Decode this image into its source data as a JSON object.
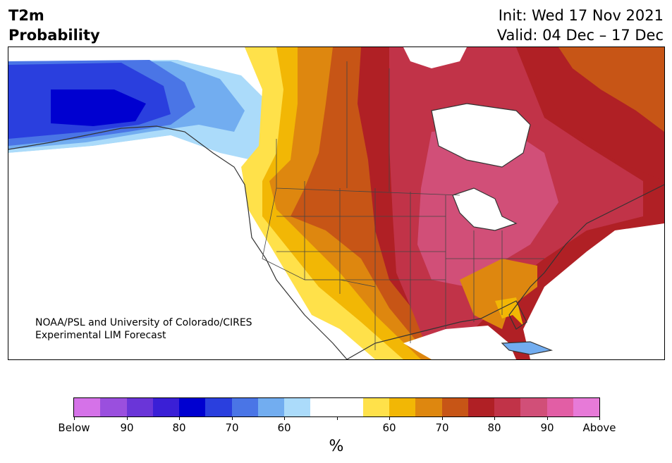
{
  "header": {
    "title_line1": "T2m",
    "title_line2": "Probability",
    "init": "Init: Wed 17 Nov 2021",
    "valid": "Valid: 04 Dec – 17 Dec"
  },
  "credit": {
    "line1": "NOAA/PSL and University of Colorado/CIRES",
    "line2": "Experimental LIM Forecast"
  },
  "colorbar": {
    "unit": "%",
    "colors": [
      "#d572e8",
      "#9a4fde",
      "#6a35d8",
      "#3a1fd6",
      "#0000d0",
      "#2a3fde",
      "#4a75e6",
      "#72adf0",
      "#abdbfa",
      "#ffffff",
      "#ffffff",
      "#ffe14a",
      "#f2b705",
      "#de870f",
      "#c75516",
      "#b02025",
      "#c13348",
      "#d14f78",
      "#e25ea5",
      "#e77ad8"
    ],
    "ticks": [
      {
        "label": "Below"
      },
      {
        "label": "90"
      },
      {
        "label": "80"
      },
      {
        "label": "70"
      },
      {
        "label": "60"
      },
      {
        "label": ""
      },
      {
        "label": "60"
      },
      {
        "label": "70"
      },
      {
        "label": "80"
      },
      {
        "label": "90"
      },
      {
        "label": "Above"
      }
    ]
  },
  "map_regions": [
    {
      "name": "alaska-below-90",
      "color": "#0000d0"
    },
    {
      "name": "alaska-below-80",
      "color": "#2a3fde"
    },
    {
      "name": "yukon-below-70",
      "color": "#4a75e6"
    },
    {
      "name": "bc-below-60",
      "color": "#abdbfa"
    },
    {
      "name": "west-above-60",
      "color": "#ffe14a"
    },
    {
      "name": "west-above-70",
      "color": "#de870f"
    },
    {
      "name": "plains-above-80",
      "color": "#b02025"
    },
    {
      "name": "east-above-85",
      "color": "#c13348"
    },
    {
      "name": "midwest-above-90",
      "color": "#d14f78"
    }
  ]
}
